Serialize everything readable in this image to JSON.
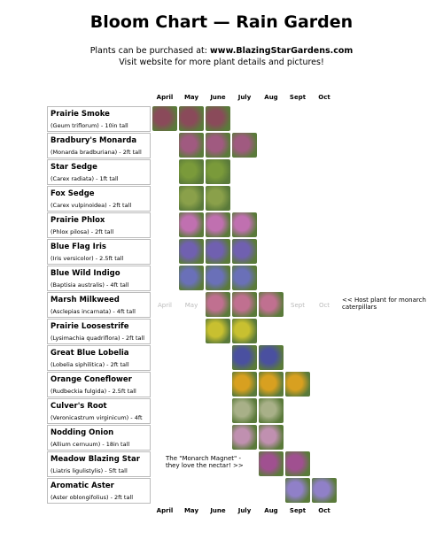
{
  "header": {
    "title": "Bloom Chart — Rain Garden",
    "purchase_text": "Plants can be purchased at:",
    "url": "www.BlazingStarGardens.com",
    "visit_text": "Visit website for more plant details and pictures!"
  },
  "months": [
    "April",
    "May",
    "June",
    "July",
    "Aug",
    "Sept",
    "Oct"
  ],
  "plants": [
    {
      "name": "Prairie Smoke",
      "detail": "(Geum triflorum) - 10in tall",
      "bloom": [
        true,
        true,
        true,
        false,
        false,
        false,
        false
      ],
      "color": "#8a4a5a"
    },
    {
      "name": "Bradbury's Monarda",
      "detail": "(Monarda bradburiana) - 2ft tall",
      "bloom": [
        false,
        true,
        true,
        true,
        false,
        false,
        false
      ],
      "color": "#a05a80"
    },
    {
      "name": "Star Sedge",
      "detail": "(Carex radiata) - 1ft tall",
      "bloom": [
        false,
        true,
        true,
        false,
        false,
        false,
        false
      ],
      "color": "#7a9a3a"
    },
    {
      "name": "Fox Sedge",
      "detail": "(Carex vulpinoidea) - 2ft tall",
      "bloom": [
        false,
        true,
        true,
        false,
        false,
        false,
        false
      ],
      "color": "#8aa04a"
    },
    {
      "name": "Prairie Phlox",
      "detail": "(Phlox pilosa) - 2ft tall",
      "bloom": [
        false,
        true,
        true,
        true,
        false,
        false,
        false
      ],
      "color": "#c070b0"
    },
    {
      "name": "Blue Flag Iris",
      "detail": "(Iris versicolor) - 2.5ft tall",
      "bloom": [
        false,
        true,
        true,
        true,
        false,
        false,
        false
      ],
      "color": "#7060b0"
    },
    {
      "name": "Blue Wild Indigo",
      "detail": "(Baptisia australis) - 4ft tall",
      "bloom": [
        false,
        true,
        true,
        true,
        false,
        false,
        false
      ],
      "color": "#6a70b8"
    },
    {
      "name": "Marsh Milkweed",
      "detail": "(Asclepias incarnata) - 4ft tall",
      "bloom": [
        false,
        false,
        true,
        true,
        true,
        false,
        false
      ],
      "color": "#c07090",
      "faded_left": [
        "April",
        "May"
      ],
      "faded_right": [
        "Sept",
        "Oct"
      ],
      "note": "<< Host plant for monarch caterpillars"
    },
    {
      "name": "Prairie Loosestrife",
      "detail": "(Lysimachia quadriflora) - 2ft tall",
      "bloom": [
        false,
        false,
        true,
        true,
        false,
        false,
        false
      ],
      "color": "#c8c030"
    },
    {
      "name": "Great Blue Lobelia",
      "detail": "(Lobelia siphilitica) - 2ft tall",
      "bloom": [
        false,
        false,
        false,
        true,
        true,
        false,
        false
      ],
      "color": "#4a50a0"
    },
    {
      "name": "Orange Coneflower",
      "detail": "(Rudbeckia fulgida) - 2.5ft tall",
      "bloom": [
        false,
        false,
        false,
        true,
        true,
        true,
        false
      ],
      "color": "#d8a020"
    },
    {
      "name": "Culver's Root",
      "detail": "(Veronicastrum virginicum) - 4ft",
      "bloom": [
        false,
        false,
        false,
        true,
        true,
        false,
        false
      ],
      "color": "#a8b088"
    },
    {
      "name": "Nodding Onion",
      "detail": "(Allium cernuum) - 18in tall",
      "bloom": [
        false,
        false,
        false,
        true,
        true,
        false,
        false
      ],
      "color": "#c090b0"
    },
    {
      "name": "Meadow Blazing Star",
      "detail": "(Liatris ligulistylis) - 5ft tall",
      "bloom": [
        false,
        false,
        false,
        false,
        true,
        true,
        false
      ],
      "color": "#a05090",
      "note_left": "The \"Monarch Magnet\" - they love the nectar! >>"
    },
    {
      "name": "Aromatic Aster",
      "detail": "(Aster oblongifolius) - 2ft tall",
      "bloom": [
        false,
        false,
        false,
        false,
        false,
        true,
        true
      ],
      "color": "#9080c8"
    }
  ]
}
